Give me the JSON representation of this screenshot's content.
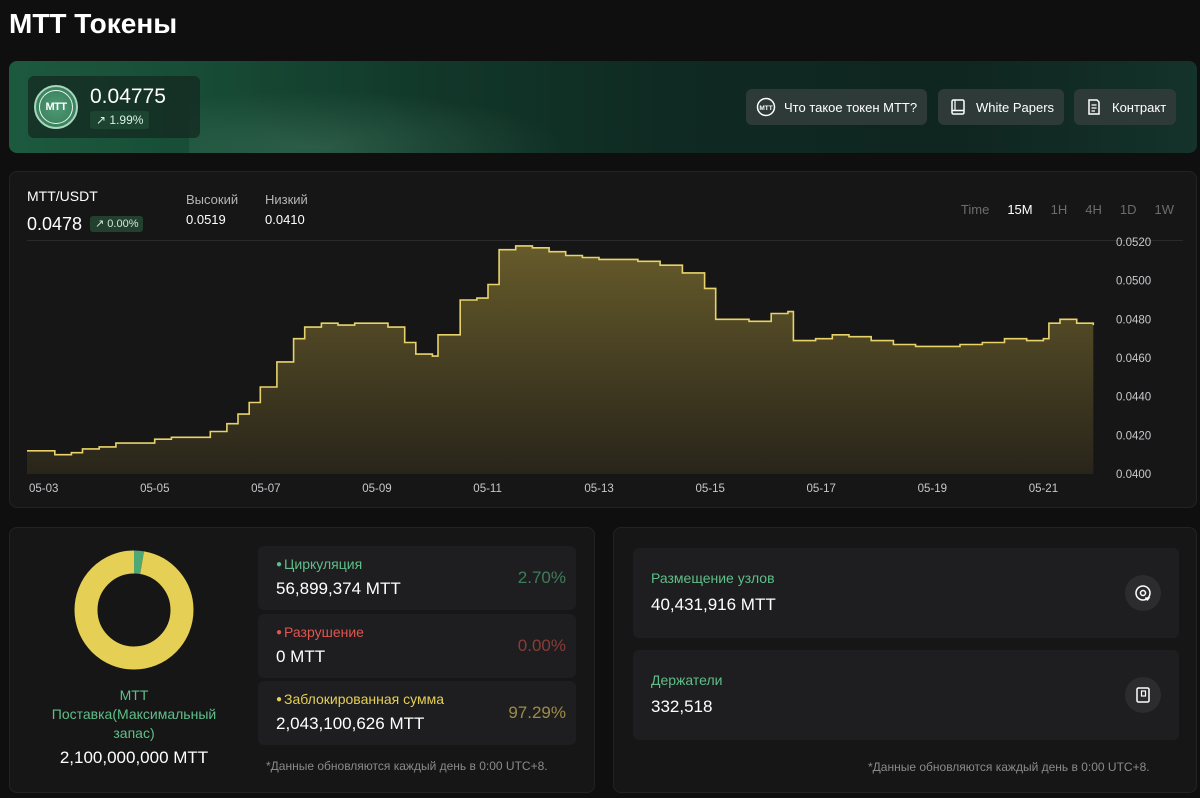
{
  "page": {
    "title": "MTT Токены"
  },
  "banner": {
    "logo_text": "MTT",
    "price": "0.04775",
    "change": "1.99%",
    "buttons": [
      {
        "label": "Что такое токен MTT?",
        "icon": "mtt-coin-icon"
      },
      {
        "label": "White Papers",
        "icon": "book-icon"
      },
      {
        "label": "Контракт",
        "icon": "document-icon"
      }
    ]
  },
  "chart_header": {
    "pair": "MTT/USDT",
    "price": "0.0478",
    "change": "0.00%",
    "high_label": "Высокий",
    "high_value": "0.0519",
    "low_label": "Низкий",
    "low_value": "0.0410",
    "intervals": [
      "Time",
      "15M",
      "1H",
      "4H",
      "1D",
      "1W"
    ],
    "active_interval": "15M"
  },
  "chart_data": {
    "type": "area",
    "xlabel": "",
    "ylabel": "",
    "x_tick_labels": [
      "05-03",
      "05-05",
      "05-07",
      "05-09",
      "05-11",
      "05-13",
      "05-15",
      "05-17",
      "05-19",
      "05-21"
    ],
    "y_tick_labels": [
      "0.0520",
      "0.0500",
      "0.0480",
      "0.0460",
      "0.0440",
      "0.0420",
      "0.0400"
    ],
    "ylim": [
      0.04,
      0.052
    ],
    "xlim_days": [
      3.0,
      22.5
    ],
    "grid": false,
    "color": "#e8d36a",
    "points": [
      [
        3.0,
        0.0412
      ],
      [
        3.3,
        0.0412
      ],
      [
        3.5,
        0.041
      ],
      [
        3.8,
        0.0411
      ],
      [
        4.0,
        0.0413
      ],
      [
        4.3,
        0.0414
      ],
      [
        4.6,
        0.0416
      ],
      [
        5.0,
        0.0416
      ],
      [
        5.3,
        0.0418
      ],
      [
        5.6,
        0.0419
      ],
      [
        6.0,
        0.0419
      ],
      [
        6.3,
        0.0422
      ],
      [
        6.6,
        0.0426
      ],
      [
        6.8,
        0.0431
      ],
      [
        7.0,
        0.0437
      ],
      [
        7.2,
        0.0445
      ],
      [
        7.5,
        0.0458
      ],
      [
        7.8,
        0.047
      ],
      [
        8.0,
        0.0476
      ],
      [
        8.3,
        0.0478
      ],
      [
        8.6,
        0.0477
      ],
      [
        8.9,
        0.0478
      ],
      [
        9.2,
        0.0478
      ],
      [
        9.5,
        0.0476
      ],
      [
        9.8,
        0.0468
      ],
      [
        10.0,
        0.0462
      ],
      [
        10.3,
        0.0461
      ],
      [
        10.4,
        0.0472
      ],
      [
        10.7,
        0.0472
      ],
      [
        10.8,
        0.049
      ],
      [
        11.1,
        0.0491
      ],
      [
        11.3,
        0.0498
      ],
      [
        11.5,
        0.0516
      ],
      [
        11.8,
        0.0518
      ],
      [
        12.1,
        0.0517
      ],
      [
        12.4,
        0.0515
      ],
      [
        12.7,
        0.0513
      ],
      [
        13.0,
        0.0512
      ],
      [
        13.3,
        0.0511
      ],
      [
        13.7,
        0.0511
      ],
      [
        14.0,
        0.051
      ],
      [
        14.4,
        0.0508
      ],
      [
        14.8,
        0.0504
      ],
      [
        15.2,
        0.0496
      ],
      [
        15.4,
        0.048
      ],
      [
        15.7,
        0.048
      ],
      [
        16.0,
        0.0479
      ],
      [
        16.4,
        0.0483
      ],
      [
        16.7,
        0.0484
      ],
      [
        16.8,
        0.0469
      ],
      [
        17.2,
        0.047
      ],
      [
        17.5,
        0.0472
      ],
      [
        17.8,
        0.0471
      ],
      [
        18.2,
        0.0469
      ],
      [
        18.6,
        0.0467
      ],
      [
        19.0,
        0.0466
      ],
      [
        19.4,
        0.0466
      ],
      [
        19.8,
        0.0467
      ],
      [
        20.2,
        0.0468
      ],
      [
        20.6,
        0.047
      ],
      [
        21.0,
        0.0469
      ],
      [
        21.3,
        0.047
      ],
      [
        21.4,
        0.0478
      ],
      [
        21.6,
        0.048
      ],
      [
        21.9,
        0.0478
      ],
      [
        22.2,
        0.0477
      ]
    ]
  },
  "supply": {
    "caption_line1": "MTT",
    "caption_line2": "Поставка(Максимальный запас)",
    "total": "2,100,000,000 MTT",
    "donut": {
      "locked_pct": 97.29,
      "circulation_pct": 2.7,
      "burn_pct": 0.0,
      "locked_color": "#e5cf55",
      "circulation_color": "#4fa774"
    },
    "items": [
      {
        "label": "Циркуляция",
        "value": "56,899,374 MTT",
        "pct": "2.70%",
        "color": "#5fbf88",
        "pct_color": "#3f7c5a"
      },
      {
        "label": "Разрушение",
        "value": "0 MTT",
        "pct": "0.00%",
        "color": "#e0554e",
        "pct_color": "#8a3b37"
      },
      {
        "label": "Заблокированная сумма",
        "value": "2,043,100,626 MTT",
        "pct": "97.29%",
        "color": "#e5cf55",
        "pct_color": "#9c8d45"
      }
    ],
    "note": "*Данные обновляются каждый день в 0:00 UTC+8."
  },
  "nodes": {
    "items": [
      {
        "label": "Размещение узлов",
        "value": "40,431,916 MTT",
        "icon": "node-placement-icon"
      },
      {
        "label": "Держатели",
        "value": "332,518",
        "icon": "holders-book-icon"
      }
    ],
    "note": "*Данные обновляются каждый день в 0:00 UTC+8."
  }
}
